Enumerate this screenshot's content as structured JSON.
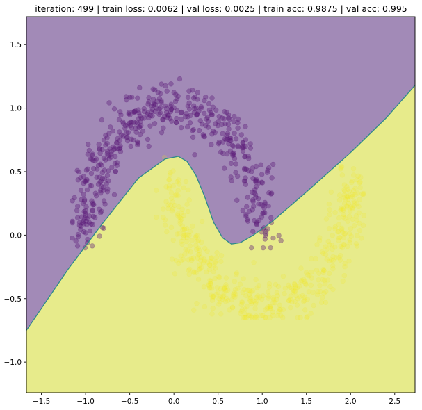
{
  "chart_data": {
    "type": "scatter",
    "title": "iteration: 499 | train loss: 0.0062 | val loss: 0.0025 | train acc: 0.9875 | val acc: 0.995",
    "xlabel": "",
    "ylabel": "",
    "xlim": [
      -1.67,
      2.73
    ],
    "ylim": [
      -1.24,
      1.72
    ],
    "xticks": [
      -1.5,
      -1.0,
      -0.5,
      0.0,
      0.5,
      1.0,
      1.5,
      2.0,
      2.5
    ],
    "yticks": [
      -1.0,
      -0.5,
      0.0,
      0.5,
      1.0,
      1.5
    ],
    "grid": false,
    "regions": [
      {
        "class": 0,
        "color": "#a28ab7"
      },
      {
        "class": 1,
        "color": "#e7eb8b"
      }
    ],
    "decision_boundary": {
      "color": "#2e8a8a",
      "x": [
        -1.67,
        -1.2,
        -0.8,
        -0.4,
        -0.1,
        0.05,
        0.15,
        0.25,
        0.35,
        0.45,
        0.55,
        0.65,
        0.75,
        0.9,
        1.1,
        1.5,
        2.0,
        2.4,
        2.73
      ],
      "y": [
        -0.75,
        -0.27,
        0.1,
        0.45,
        0.6,
        0.62,
        0.58,
        0.47,
        0.3,
        0.1,
        -0.02,
        -0.07,
        -0.06,
        0.0,
        0.1,
        0.34,
        0.65,
        0.92,
        1.18
      ]
    },
    "series": [
      {
        "class": 0,
        "color": "#5b1a78",
        "opacity": 0.38,
        "n": 500,
        "x_range": [
          -1.15,
          1.25
        ],
        "y_range": [
          -0.1,
          1.23
        ]
      },
      {
        "class": 1,
        "color": "#f3e81e",
        "opacity": 0.18,
        "n": 500,
        "x_range": [
          -0.2,
          2.15
        ],
        "y_range": [
          -0.65,
          0.75
        ]
      }
    ]
  }
}
